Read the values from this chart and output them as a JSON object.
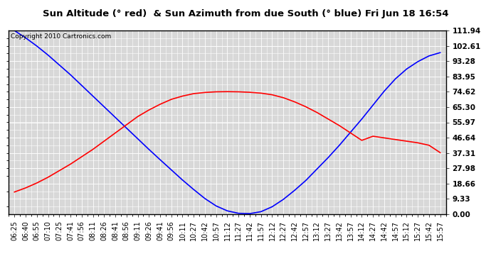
{
  "title": "Sun Altitude (° red)  & Sun Azimuth from due South (° blue) Fri Jun 18 16:54",
  "copyright": "Copyright 2010 Cartronics.com",
  "y_ticks": [
    0.0,
    9.33,
    18.66,
    27.98,
    37.31,
    46.64,
    55.97,
    65.3,
    74.62,
    83.95,
    93.28,
    102.61,
    111.94
  ],
  "y_min": 0.0,
  "y_max": 111.94,
  "x_labels": [
    "06:25",
    "06:40",
    "06:55",
    "07:10",
    "07:25",
    "07:41",
    "07:56",
    "08:11",
    "08:26",
    "08:41",
    "08:56",
    "09:11",
    "09:26",
    "09:41",
    "09:56",
    "10:11",
    "10:27",
    "10:42",
    "10:57",
    "11:12",
    "11:27",
    "11:42",
    "11:57",
    "12:12",
    "12:27",
    "12:42",
    "12:57",
    "13:12",
    "13:27",
    "13:42",
    "13:57",
    "14:12",
    "14:27",
    "14:42",
    "14:57",
    "15:12",
    "15:27",
    "15:42",
    "15:57"
  ],
  "background_color": "#ffffff",
  "plot_bg_color": "#d8d8d8",
  "grid_color": "#ffffff",
  "blue_line_color": "#0000ff",
  "red_line_color": "#ff0000",
  "title_fontsize": 9.5,
  "copyright_fontsize": 6.5,
  "tick_fontsize": 7,
  "ytick_fontsize": 7.5,
  "blue_data": [
    111.94,
    107.5,
    102.5,
    97.0,
    91.0,
    85.0,
    78.5,
    72.0,
    65.5,
    59.0,
    52.5,
    46.0,
    39.5,
    33.2,
    27.0,
    20.8,
    15.0,
    9.5,
    5.0,
    2.0,
    0.5,
    0.3,
    1.5,
    4.5,
    9.0,
    14.5,
    20.5,
    27.5,
    34.5,
    42.0,
    50.0,
    58.0,
    66.5,
    75.0,
    82.5,
    88.5,
    93.0,
    96.5,
    98.5
  ],
  "red_data": [
    13.5,
    16.0,
    19.0,
    22.5,
    26.5,
    30.5,
    35.0,
    39.5,
    44.5,
    49.5,
    54.5,
    59.5,
    63.5,
    67.0,
    70.0,
    72.0,
    73.5,
    74.2,
    74.6,
    74.7,
    74.6,
    74.3,
    73.8,
    72.8,
    71.0,
    68.5,
    65.5,
    62.0,
    58.0,
    54.0,
    49.5,
    45.0,
    47.5,
    46.5,
    45.5,
    44.5,
    43.5,
    42.0,
    37.5
  ]
}
